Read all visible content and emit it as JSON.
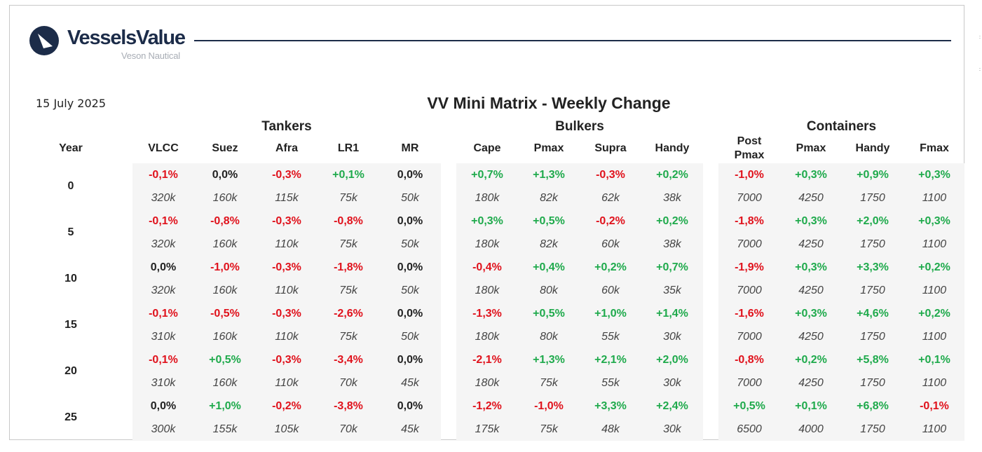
{
  "header": {
    "brand": "VesselsValue",
    "brand_sub": "Veson Nautical",
    "date": "15 July 2025",
    "title": "VV Mini Matrix - Weekly Change"
  },
  "colors": {
    "positive": "#1faa4c",
    "negative": "#e0121c",
    "neutral": "#222222",
    "navy": "#1c2c49",
    "panel": "#f5f5f5"
  },
  "table": {
    "year_label": "Year",
    "groups": [
      {
        "name": "Tankers",
        "columns": [
          "VLCC",
          "Suez",
          "Afra",
          "LR1",
          "MR"
        ]
      },
      {
        "name": "Bulkers",
        "columns": [
          "Cape",
          "Pmax",
          "Supra",
          "Handy"
        ]
      },
      {
        "name": "Containers",
        "columns": [
          "Post Pmax",
          "Pmax",
          "Handy",
          "Fmax"
        ]
      }
    ],
    "rows": [
      {
        "year": "0",
        "changes": [
          "-0,1%",
          "0,0%",
          "-0,3%",
          "+0,1%",
          "0,0%",
          "+0,7%",
          "+1,3%",
          "-0,3%",
          "+0,2%",
          "-1,0%",
          "+0,3%",
          "+0,9%",
          "+0,3%"
        ],
        "sizes": [
          "320k",
          "160k",
          "115k",
          "75k",
          "50k",
          "180k",
          "82k",
          "62k",
          "38k",
          "7000",
          "4250",
          "1750",
          "1100"
        ]
      },
      {
        "year": "5",
        "changes": [
          "-0,1%",
          "-0,8%",
          "-0,3%",
          "-0,8%",
          "0,0%",
          "+0,3%",
          "+0,5%",
          "-0,2%",
          "+0,2%",
          "-1,8%",
          "+0,3%",
          "+2,0%",
          "+0,3%"
        ],
        "sizes": [
          "320k",
          "160k",
          "110k",
          "75k",
          "50k",
          "180k",
          "82k",
          "60k",
          "38k",
          "7000",
          "4250",
          "1750",
          "1100"
        ]
      },
      {
        "year": "10",
        "changes": [
          "0,0%",
          "-1,0%",
          "-0,3%",
          "-1,8%",
          "0,0%",
          "-0,4%",
          "+0,4%",
          "+0,2%",
          "+0,7%",
          "-1,9%",
          "+0,3%",
          "+3,3%",
          "+0,2%"
        ],
        "sizes": [
          "320k",
          "160k",
          "110k",
          "75k",
          "50k",
          "180k",
          "80k",
          "60k",
          "35k",
          "7000",
          "4250",
          "1750",
          "1100"
        ]
      },
      {
        "year": "15",
        "changes": [
          "-0,1%",
          "-0,5%",
          "-0,3%",
          "-2,6%",
          "0,0%",
          "-1,3%",
          "+0,5%",
          "+1,0%",
          "+1,4%",
          "-1,6%",
          "+0,3%",
          "+4,6%",
          "+0,2%"
        ],
        "sizes": [
          "310k",
          "160k",
          "110k",
          "75k",
          "50k",
          "180k",
          "80k",
          "55k",
          "30k",
          "7000",
          "4250",
          "1750",
          "1100"
        ]
      },
      {
        "year": "20",
        "changes": [
          "-0,1%",
          "+0,5%",
          "-0,3%",
          "-3,4%",
          "0,0%",
          "-2,1%",
          "+1,3%",
          "+2,1%",
          "+2,0%",
          "-0,8%",
          "+0,2%",
          "+5,8%",
          "+0,1%"
        ],
        "sizes": [
          "310k",
          "160k",
          "110k",
          "70k",
          "45k",
          "180k",
          "75k",
          "55k",
          "30k",
          "7000",
          "4250",
          "1750",
          "1100"
        ]
      },
      {
        "year": "25",
        "changes": [
          "0,0%",
          "+1,0%",
          "-0,2%",
          "-3,8%",
          "0,0%",
          "-1,2%",
          "-1,0%",
          "+3,3%",
          "+2,4%",
          "+0,5%",
          "+0,1%",
          "+6,8%",
          "-0,1%"
        ],
        "sizes": [
          "300k",
          "155k",
          "105k",
          "70k",
          "45k",
          "175k",
          "75k",
          "48k",
          "30k",
          "6500",
          "4000",
          "1750",
          "1100"
        ]
      }
    ]
  }
}
